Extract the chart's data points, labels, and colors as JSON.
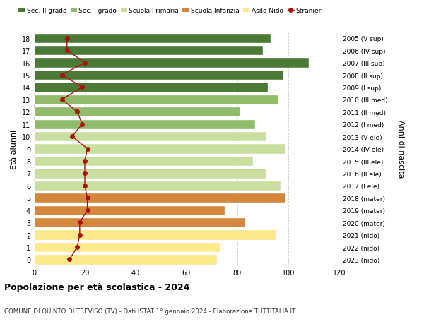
{
  "ages": [
    0,
    1,
    2,
    3,
    4,
    5,
    6,
    7,
    8,
    9,
    10,
    11,
    12,
    13,
    14,
    15,
    16,
    17,
    18
  ],
  "anni_nascita": [
    "2023 (nido)",
    "2022 (nido)",
    "2021 (nido)",
    "2020 (mater)",
    "2019 (mater)",
    "2018 (mater)",
    "2017 (I ele)",
    "2016 (II ele)",
    "2015 (III ele)",
    "2014 (IV ele)",
    "2013 (V ele)",
    "2012 (I med)",
    "2011 (II med)",
    "2010 (III med)",
    "2009 (I sup)",
    "2008 (II sup)",
    "2007 (III sup)",
    "2006 (IV sup)",
    "2005 (V sup)"
  ],
  "bar_values": [
    72,
    73,
    95,
    83,
    75,
    99,
    97,
    91,
    86,
    99,
    91,
    87,
    81,
    96,
    92,
    98,
    108,
    90,
    93
  ],
  "stranieri": [
    14,
    17,
    18,
    18,
    21,
    21,
    20,
    20,
    20,
    21,
    15,
    19,
    17,
    11,
    19,
    11,
    20,
    13,
    13
  ],
  "bar_colors": [
    "#fde88a",
    "#fde88a",
    "#fde88a",
    "#d4863c",
    "#d4863c",
    "#d4863c",
    "#c8dfa0",
    "#c8dfa0",
    "#c8dfa0",
    "#c8dfa0",
    "#c8dfa0",
    "#90bb6a",
    "#90bb6a",
    "#90bb6a",
    "#4a7a36",
    "#4a7a36",
    "#4a7a36",
    "#4a7a36",
    "#4a7a36"
  ],
  "legend_labels": [
    "Sec. II grado",
    "Sec. I grado",
    "Scuola Primaria",
    "Scuola Infanzia",
    "Asilo Nido",
    "Stranieri"
  ],
  "legend_colors": [
    "#4a7a36",
    "#90bb6a",
    "#c8dfa0",
    "#d4863c",
    "#fde88a",
    "#aa1111"
  ],
  "stranieri_color": "#aa1111",
  "title": "Popolazione per età scolastica - 2024",
  "subtitle": "COMUNE DI QUINTO DI TREVISO (TV) - Dati ISTAT 1° gennaio 2024 - Elaborazione TUTTITALIA.IT",
  "ylabel_left": "Età alunni",
  "ylabel_right": "Anni di nascita",
  "xlim": [
    0,
    120
  ],
  "background_color": "#ffffff",
  "grid_color": "#cccccc"
}
